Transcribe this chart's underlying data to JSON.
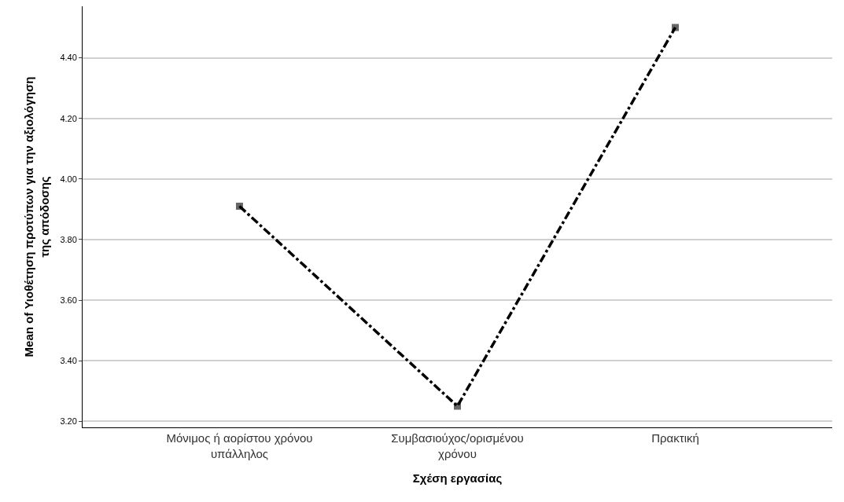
{
  "chart_data": {
    "type": "line",
    "xlabel": "Σχέση εργασίας",
    "ylabel": "Mean of Υιοθέτηση προτύπων για την αξιολόγηση της απόδοσης",
    "categories": [
      "Μόνιμος ή αορίστου χρόνου υπάλληλος",
      "Συμβασιούχος/ορισμένου χρόνου",
      "Πρακτική"
    ],
    "series": [
      {
        "color": "#000000",
        "values": [
          3.91,
          3.25,
          4.5
        ]
      }
    ],
    "ylim": [
      3.18,
      4.57
    ],
    "yticks": [
      {
        "value": 3.2,
        "label": "3.20"
      },
      {
        "value": 3.4,
        "label": "3.40"
      },
      {
        "value": 3.6,
        "label": "3.60"
      },
      {
        "value": 3.8,
        "label": "3.80"
      },
      {
        "value": 4.0,
        "label": "4.00"
      },
      {
        "value": 4.2,
        "label": "4.20"
      },
      {
        "value": 4.4,
        "label": "4.40"
      }
    ],
    "grid": "y",
    "marker": "square",
    "line_style": "dashdot"
  }
}
